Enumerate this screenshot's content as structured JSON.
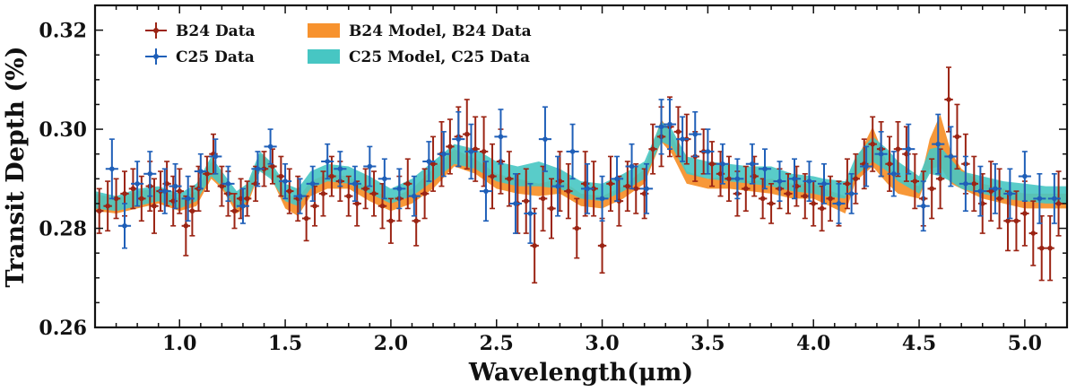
{
  "chart_data": {
    "type": "scatter",
    "title": "",
    "xlabel": "Wavelength(μm)",
    "ylabel": "Transit Depth (%)",
    "xlim": [
      0.6,
      5.2
    ],
    "ylim": [
      0.26,
      0.325
    ],
    "x_ticks": [
      1.0,
      1.5,
      2.0,
      2.5,
      3.0,
      3.5,
      4.0,
      4.5,
      5.0
    ],
    "x_tick_labels": [
      "1.0",
      "1.5",
      "2.0",
      "2.5",
      "3.0",
      "3.5",
      "4.0",
      "4.5",
      "5.0"
    ],
    "y_ticks": [
      0.26,
      0.28,
      0.3,
      0.32
    ],
    "y_tick_labels": [
      "0.26",
      "0.28",
      "0.30",
      "0.32"
    ],
    "legend_position": "top-left",
    "legend": [
      {
        "label": "B24 Data",
        "kind": "errorbar",
        "color": "#9b2414"
      },
      {
        "label": "C25 Data",
        "kind": "errorbar",
        "color": "#1f5fb8"
      },
      {
        "label": "B24 Model, B24 Data",
        "kind": "band",
        "color": "#f7922e"
      },
      {
        "label": "C25 Model, C25 Data",
        "kind": "band",
        "color": "#47c6c3"
      }
    ],
    "series": [
      {
        "name": "B24 Model, B24 Data",
        "kind": "band",
        "color": "#f7922e",
        "x": [
          0.6,
          0.7,
          0.8,
          0.9,
          1.0,
          1.08,
          1.15,
          1.2,
          1.27,
          1.32,
          1.38,
          1.43,
          1.5,
          1.56,
          1.62,
          1.7,
          1.8,
          1.9,
          2.0,
          2.1,
          2.2,
          2.3,
          2.4,
          2.5,
          2.6,
          2.7,
          2.8,
          2.9,
          3.0,
          3.1,
          3.2,
          3.28,
          3.33,
          3.4,
          3.5,
          3.6,
          3.7,
          3.8,
          3.9,
          4.0,
          4.05,
          4.15,
          4.2,
          4.28,
          4.35,
          4.4,
          4.5,
          4.55,
          4.6,
          4.65,
          4.7,
          4.8,
          4.9,
          5.0,
          5.1,
          5.2
        ],
        "lower": [
          0.2835,
          0.283,
          0.284,
          0.285,
          0.2835,
          0.2845,
          0.29,
          0.288,
          0.283,
          0.2845,
          0.2915,
          0.2905,
          0.284,
          0.2825,
          0.2865,
          0.288,
          0.288,
          0.2855,
          0.2835,
          0.285,
          0.288,
          0.2925,
          0.291,
          0.288,
          0.287,
          0.2865,
          0.287,
          0.2845,
          0.284,
          0.286,
          0.289,
          0.2975,
          0.295,
          0.289,
          0.288,
          0.288,
          0.2875,
          0.287,
          0.286,
          0.286,
          0.285,
          0.283,
          0.2895,
          0.2925,
          0.289,
          0.287,
          0.286,
          0.292,
          0.2925,
          0.289,
          0.288,
          0.286,
          0.285,
          0.284,
          0.284,
          0.284
        ],
        "upper": [
          0.287,
          0.286,
          0.2875,
          0.288,
          0.286,
          0.2875,
          0.2935,
          0.2905,
          0.2855,
          0.288,
          0.295,
          0.2935,
          0.287,
          0.286,
          0.2895,
          0.291,
          0.2905,
          0.288,
          0.286,
          0.288,
          0.292,
          0.296,
          0.294,
          0.291,
          0.29,
          0.289,
          0.29,
          0.287,
          0.2865,
          0.2885,
          0.292,
          0.302,
          0.299,
          0.2915,
          0.29,
          0.2905,
          0.2895,
          0.29,
          0.289,
          0.289,
          0.288,
          0.2865,
          0.2935,
          0.3005,
          0.293,
          0.29,
          0.2885,
          0.298,
          0.303,
          0.2955,
          0.292,
          0.289,
          0.288,
          0.287,
          0.287,
          0.287
        ]
      },
      {
        "name": "C25 Model, C25 Data",
        "kind": "band",
        "color": "#47c6c3",
        "x": [
          0.6,
          0.7,
          0.8,
          0.9,
          1.0,
          1.08,
          1.15,
          1.2,
          1.27,
          1.32,
          1.38,
          1.43,
          1.5,
          1.56,
          1.62,
          1.7,
          1.8,
          1.9,
          2.0,
          2.1,
          2.2,
          2.3,
          2.4,
          2.5,
          2.6,
          2.7,
          2.8,
          2.9,
          3.0,
          3.1,
          3.2,
          3.28,
          3.33,
          3.4,
          3.5,
          3.6,
          3.7,
          3.8,
          3.9,
          4.0,
          4.05,
          4.15,
          4.2,
          4.28,
          4.35,
          4.4,
          4.5,
          4.55,
          4.6,
          4.65,
          4.7,
          4.8,
          4.9,
          5.0,
          5.1,
          5.2
        ],
        "lower": [
          0.284,
          0.2835,
          0.2845,
          0.2855,
          0.284,
          0.2855,
          0.2905,
          0.2885,
          0.284,
          0.2855,
          0.2915,
          0.29,
          0.2855,
          0.2845,
          0.288,
          0.2895,
          0.289,
          0.287,
          0.285,
          0.2865,
          0.2895,
          0.293,
          0.292,
          0.2895,
          0.2885,
          0.2885,
          0.288,
          0.286,
          0.2855,
          0.2875,
          0.29,
          0.2975,
          0.2965,
          0.291,
          0.29,
          0.2895,
          0.289,
          0.2885,
          0.2875,
          0.287,
          0.2865,
          0.286,
          0.2905,
          0.2935,
          0.2915,
          0.2895,
          0.287,
          0.291,
          0.2905,
          0.2895,
          0.288,
          0.287,
          0.286,
          0.2855,
          0.285,
          0.285
        ],
        "upper": [
          0.2875,
          0.2865,
          0.288,
          0.2885,
          0.287,
          0.289,
          0.2945,
          0.2915,
          0.2875,
          0.289,
          0.2955,
          0.2935,
          0.289,
          0.288,
          0.2915,
          0.293,
          0.2925,
          0.2905,
          0.288,
          0.29,
          0.2935,
          0.297,
          0.296,
          0.2935,
          0.2925,
          0.2935,
          0.292,
          0.2895,
          0.289,
          0.291,
          0.2935,
          0.3015,
          0.3,
          0.2945,
          0.2935,
          0.293,
          0.2925,
          0.2925,
          0.291,
          0.2905,
          0.29,
          0.2895,
          0.2945,
          0.2985,
          0.296,
          0.2935,
          0.2905,
          0.296,
          0.2965,
          0.294,
          0.2915,
          0.2905,
          0.2895,
          0.289,
          0.2885,
          0.2885
        ]
      },
      {
        "name": "B24 Data",
        "kind": "errorbar",
        "color": "#9b2414",
        "x": [
          0.62,
          0.66,
          0.7,
          0.74,
          0.78,
          0.82,
          0.86,
          0.88,
          0.91,
          0.94,
          0.97,
          1.0,
          1.03,
          1.06,
          1.09,
          1.13,
          1.16,
          1.2,
          1.23,
          1.26,
          1.29,
          1.32,
          1.36,
          1.4,
          1.44,
          1.48,
          1.52,
          1.56,
          1.6,
          1.64,
          1.68,
          1.72,
          1.76,
          1.8,
          1.84,
          1.88,
          1.92,
          1.96,
          2.0,
          2.04,
          2.08,
          2.12,
          2.16,
          2.2,
          2.24,
          2.28,
          2.32,
          2.36,
          2.4,
          2.44,
          2.48,
          2.52,
          2.56,
          2.6,
          2.64,
          2.68,
          2.72,
          2.76,
          2.8,
          2.84,
          2.88,
          2.92,
          2.96,
          3.0,
          3.04,
          3.08,
          3.12,
          3.16,
          3.2,
          3.24,
          3.28,
          3.32,
          3.36,
          3.4,
          3.44,
          3.48,
          3.52,
          3.56,
          3.6,
          3.64,
          3.68,
          3.72,
          3.76,
          3.8,
          3.84,
          3.88,
          3.92,
          3.96,
          4.0,
          4.04,
          4.08,
          4.12,
          4.16,
          4.2,
          4.24,
          4.28,
          4.32,
          4.36,
          4.4,
          4.44,
          4.48,
          4.52,
          4.56,
          4.6,
          4.64,
          4.68,
          4.72,
          4.76,
          4.8,
          4.84,
          4.88,
          4.92,
          4.96,
          5.0,
          5.04,
          5.08,
          5.12,
          5.16
        ],
        "y": [
          0.2835,
          0.2845,
          0.286,
          0.287,
          0.288,
          0.286,
          0.2885,
          0.2845,
          0.2875,
          0.289,
          0.2855,
          0.2875,
          0.2805,
          0.2835,
          0.288,
          0.291,
          0.295,
          0.2885,
          0.287,
          0.2835,
          0.286,
          0.286,
          0.289,
          0.292,
          0.2925,
          0.2905,
          0.2875,
          0.286,
          0.282,
          0.2845,
          0.287,
          0.2905,
          0.2895,
          0.2865,
          0.285,
          0.288,
          0.287,
          0.2845,
          0.2815,
          0.286,
          0.289,
          0.2815,
          0.287,
          0.293,
          0.295,
          0.2965,
          0.2985,
          0.299,
          0.296,
          0.2955,
          0.2905,
          0.2935,
          0.29,
          0.285,
          0.2855,
          0.2765,
          0.286,
          0.284,
          0.2895,
          0.2875,
          0.28,
          0.289,
          0.288,
          0.2765,
          0.289,
          0.2855,
          0.2885,
          0.288,
          0.287,
          0.296,
          0.2985,
          0.3005,
          0.2995,
          0.298,
          0.2945,
          0.2955,
          0.293,
          0.291,
          0.29,
          0.287,
          0.288,
          0.2905,
          0.286,
          0.285,
          0.288,
          0.287,
          0.2885,
          0.2865,
          0.285,
          0.284,
          0.286,
          0.285,
          0.289,
          0.29,
          0.293,
          0.297,
          0.296,
          0.293,
          0.296,
          0.295,
          0.2895,
          0.286,
          0.288,
          0.29,
          0.306,
          0.2985,
          0.293,
          0.289,
          0.285,
          0.2875,
          0.286,
          0.2815,
          0.2815,
          0.283,
          0.279,
          0.276,
          0.276,
          0.285
        ],
        "yerr": [
          0.0045,
          0.005,
          0.004,
          0.0045,
          0.004,
          0.0045,
          0.005,
          0.0055,
          0.004,
          0.0045,
          0.005,
          0.0045,
          0.006,
          0.005,
          0.0045,
          0.0035,
          0.004,
          0.004,
          0.0045,
          0.0035,
          0.004,
          0.0035,
          0.0035,
          0.0035,
          0.0035,
          0.004,
          0.0045,
          0.0045,
          0.0045,
          0.004,
          0.0045,
          0.004,
          0.004,
          0.004,
          0.0045,
          0.004,
          0.0045,
          0.0045,
          0.0045,
          0.0045,
          0.005,
          0.005,
          0.005,
          0.0055,
          0.0065,
          0.0055,
          0.006,
          0.007,
          0.0065,
          0.007,
          0.0065,
          0.0065,
          0.0055,
          0.006,
          0.0065,
          0.0075,
          0.0065,
          0.006,
          0.006,
          0.0055,
          0.006,
          0.0065,
          0.0055,
          0.0055,
          0.0055,
          0.005,
          0.005,
          0.005,
          0.005,
          0.005,
          0.006,
          0.006,
          0.005,
          0.005,
          0.005,
          0.0045,
          0.0045,
          0.0045,
          0.0045,
          0.0045,
          0.0045,
          0.004,
          0.004,
          0.004,
          0.004,
          0.004,
          0.004,
          0.0045,
          0.0045,
          0.0045,
          0.0045,
          0.0045,
          0.005,
          0.005,
          0.005,
          0.0055,
          0.0055,
          0.0055,
          0.0055,
          0.0055,
          0.0055,
          0.0055,
          0.006,
          0.006,
          0.0065,
          0.0065,
          0.006,
          0.0055,
          0.006,
          0.006,
          0.006,
          0.006,
          0.006,
          0.0065,
          0.0065,
          0.0065,
          0.0065,
          0.0065
        ],
        "xerr": 0.02
      },
      {
        "name": "C25 Data",
        "kind": "errorbar",
        "color": "#1f5fb8",
        "x": [
          0.68,
          0.74,
          0.8,
          0.86,
          0.93,
          0.98,
          1.04,
          1.1,
          1.17,
          1.23,
          1.3,
          1.37,
          1.43,
          1.5,
          1.57,
          1.63,
          1.7,
          1.76,
          1.83,
          1.9,
          1.97,
          2.04,
          2.11,
          2.18,
          2.25,
          2.32,
          2.38,
          2.45,
          2.52,
          2.59,
          2.66,
          2.73,
          2.79,
          2.86,
          2.93,
          3.0,
          3.07,
          3.14,
          3.21,
          3.28,
          3.32,
          3.38,
          3.44,
          3.5,
          3.57,
          3.64,
          3.71,
          3.77,
          3.84,
          3.91,
          3.98,
          4.05,
          4.12,
          4.18,
          4.25,
          4.32,
          4.38,
          4.45,
          4.52,
          4.59,
          4.65,
          4.72,
          4.79,
          4.86,
          4.93,
          5.0,
          5.07,
          5.14
        ],
        "y": [
          0.292,
          0.2805,
          0.289,
          0.291,
          0.2875,
          0.2885,
          0.286,
          0.2915,
          0.2945,
          0.289,
          0.2845,
          0.292,
          0.2965,
          0.2895,
          0.2865,
          0.289,
          0.2935,
          0.292,
          0.289,
          0.2925,
          0.29,
          0.288,
          0.2865,
          0.2935,
          0.295,
          0.298,
          0.2955,
          0.2875,
          0.2985,
          0.285,
          0.283,
          0.298,
          0.2885,
          0.2955,
          0.288,
          0.286,
          0.29,
          0.2925,
          0.288,
          0.3005,
          0.301,
          0.298,
          0.299,
          0.2955,
          0.293,
          0.29,
          0.293,
          0.292,
          0.2895,
          0.29,
          0.2895,
          0.289,
          0.285,
          0.287,
          0.2925,
          0.295,
          0.291,
          0.296,
          0.2845,
          0.297,
          0.2945,
          0.289,
          0.2875,
          0.288,
          0.287,
          0.2905,
          0.286,
          0.286
        ],
        "yerr": [
          0.006,
          0.0045,
          0.0045,
          0.0045,
          0.0045,
          0.0045,
          0.0045,
          0.0035,
          0.0035,
          0.0035,
          0.0035,
          0.0035,
          0.0035,
          0.0035,
          0.0035,
          0.0035,
          0.0035,
          0.0035,
          0.0035,
          0.004,
          0.004,
          0.004,
          0.004,
          0.004,
          0.0045,
          0.0055,
          0.0055,
          0.006,
          0.0055,
          0.006,
          0.006,
          0.0065,
          0.006,
          0.0055,
          0.005,
          0.0045,
          0.0045,
          0.0045,
          0.005,
          0.0055,
          0.005,
          0.0045,
          0.0045,
          0.0045,
          0.004,
          0.004,
          0.004,
          0.004,
          0.004,
          0.004,
          0.004,
          0.004,
          0.004,
          0.004,
          0.004,
          0.0045,
          0.0045,
          0.005,
          0.005,
          0.006,
          0.006,
          0.0055,
          0.005,
          0.005,
          0.005,
          0.005,
          0.005,
          0.005
        ],
        "xerr": 0.03
      }
    ]
  }
}
